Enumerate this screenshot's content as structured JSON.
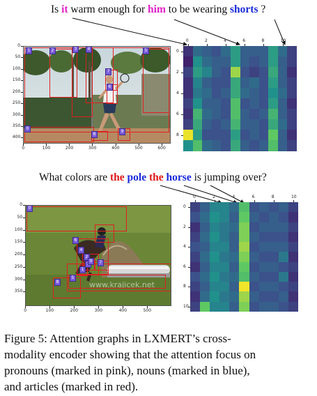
{
  "panels": [
    {
      "question": [
        {
          "text": "Is ",
          "role": "plain"
        },
        {
          "text": "it",
          "role": "pronoun"
        },
        {
          "text": " warm enough for ",
          "role": "plain"
        },
        {
          "text": "him",
          "role": "pronoun"
        },
        {
          "text": " to be wearing ",
          "role": "plain"
        },
        {
          "text": "shorts",
          "role": "noun"
        },
        {
          "text": " ?",
          "role": "plain"
        }
      ],
      "image_axis": {
        "x_ticks": [
          "0",
          "100",
          "200",
          "300",
          "400",
          "500",
          "600"
        ],
        "y_ticks": [
          "0",
          "50",
          "100",
          "150",
          "200",
          "250",
          "300",
          "350",
          "400"
        ]
      },
      "object_ids": [
        "0",
        "1",
        "2",
        "3",
        "4",
        "5",
        "6",
        "7",
        "8",
        "9"
      ],
      "heatmap": {
        "x_ticks": [
          "0",
          "2",
          "4",
          "6",
          "8",
          "10"
        ],
        "y_ticks": [
          "0",
          "2",
          "4",
          "6",
          "8"
        ],
        "rows": 10,
        "cols": 12,
        "values": [
          [
            0.15,
            0.35,
            0.3,
            0.25,
            0.35,
            0.55,
            0.3,
            0.3,
            0.3,
            0.55,
            0.35,
            0.2
          ],
          [
            0.1,
            0.5,
            0.35,
            0.3,
            0.3,
            0.55,
            0.3,
            0.25,
            0.3,
            0.55,
            0.3,
            0.2
          ],
          [
            0.2,
            0.55,
            0.45,
            0.3,
            0.25,
            0.85,
            0.25,
            0.2,
            0.25,
            0.6,
            0.3,
            0.15
          ],
          [
            0.15,
            0.45,
            0.3,
            0.25,
            0.25,
            0.6,
            0.3,
            0.35,
            0.25,
            0.55,
            0.3,
            0.2
          ],
          [
            0.15,
            0.4,
            0.35,
            0.25,
            0.3,
            0.6,
            0.35,
            0.3,
            0.25,
            0.5,
            0.35,
            0.2
          ],
          [
            0.2,
            0.5,
            0.3,
            0.3,
            0.25,
            0.7,
            0.25,
            0.3,
            0.25,
            0.55,
            0.3,
            0.15
          ],
          [
            0.15,
            0.65,
            0.35,
            0.3,
            0.25,
            0.7,
            0.3,
            0.25,
            0.3,
            0.65,
            0.3,
            0.2
          ],
          [
            0.2,
            0.6,
            0.3,
            0.25,
            0.3,
            0.65,
            0.3,
            0.3,
            0.25,
            0.6,
            0.35,
            0.2
          ],
          [
            0.97,
            0.55,
            0.25,
            0.25,
            0.25,
            0.55,
            0.25,
            0.3,
            0.25,
            0.75,
            0.3,
            0.15
          ],
          [
            0.5,
            0.7,
            0.35,
            0.3,
            0.25,
            0.6,
            0.3,
            0.25,
            0.3,
            0.7,
            0.3,
            0.2
          ]
        ]
      }
    },
    {
      "question": [
        {
          "text": "What colors are ",
          "role": "plain"
        },
        {
          "text": "the",
          "role": "article"
        },
        {
          "text": " ",
          "role": "plain"
        },
        {
          "text": "pole",
          "role": "noun"
        },
        {
          "text": " ",
          "role": "plain"
        },
        {
          "text": "the",
          "role": "article"
        },
        {
          "text": " ",
          "role": "plain"
        },
        {
          "text": "horse",
          "role": "noun"
        },
        {
          "text": " is jumping over?",
          "role": "plain"
        }
      ],
      "image_axis": {
        "x_ticks": [
          "0",
          "100",
          "200",
          "300",
          "400",
          "500"
        ],
        "y_ticks": [
          "0",
          "50",
          "100",
          "150",
          "200",
          "250",
          "300",
          "350"
        ]
      },
      "object_ids": [
        "0",
        "1",
        "2",
        "3",
        "4",
        "5",
        "6",
        "7",
        "8",
        "9"
      ],
      "watermark": "www.krajicek.net",
      "heatmap": {
        "x_ticks": [
          "0",
          "2",
          "4",
          "6",
          "8",
          "10"
        ],
        "y_ticks": [
          "0",
          "2",
          "4",
          "6",
          "8",
          "10"
        ],
        "rows": 11,
        "cols": 11,
        "values": [
          [
            0.2,
            0.3,
            0.45,
            0.45,
            0.35,
            0.7,
            0.25,
            0.3,
            0.25,
            0.3,
            0.2
          ],
          [
            0.25,
            0.35,
            0.5,
            0.45,
            0.3,
            0.75,
            0.3,
            0.25,
            0.3,
            0.25,
            0.15
          ],
          [
            0.15,
            0.3,
            0.45,
            0.4,
            0.35,
            0.8,
            0.25,
            0.3,
            0.3,
            0.3,
            0.2
          ],
          [
            0.2,
            0.35,
            0.5,
            0.4,
            0.3,
            0.8,
            0.3,
            0.25,
            0.25,
            0.25,
            0.15
          ],
          [
            0.25,
            0.3,
            0.45,
            0.45,
            0.3,
            0.85,
            0.25,
            0.3,
            0.3,
            0.3,
            0.2
          ],
          [
            0.2,
            0.35,
            0.5,
            0.4,
            0.35,
            0.8,
            0.3,
            0.25,
            0.25,
            0.4,
            0.15
          ],
          [
            0.15,
            0.3,
            0.45,
            0.45,
            0.3,
            0.75,
            0.25,
            0.3,
            0.3,
            0.25,
            0.2
          ],
          [
            0.25,
            0.35,
            0.5,
            0.4,
            0.35,
            0.7,
            0.3,
            0.25,
            0.25,
            0.4,
            0.15
          ],
          [
            0.2,
            0.3,
            0.45,
            0.45,
            0.3,
            0.98,
            0.25,
            0.3,
            0.3,
            0.25,
            0.2
          ],
          [
            0.15,
            0.35,
            0.5,
            0.4,
            0.35,
            0.85,
            0.3,
            0.25,
            0.25,
            0.3,
            0.15
          ],
          [
            0.2,
            0.75,
            0.45,
            0.45,
            0.3,
            0.8,
            0.25,
            0.3,
            0.3,
            0.25,
            0.2
          ]
        ]
      }
    }
  ],
  "colors": {
    "pronoun": "#e020c8",
    "noun": "#1a2ad8",
    "article": "#e01818",
    "plain": "#111111"
  },
  "caption": {
    "lines": [
      "Figure 5:  Attention graphs in LXMERT’s cross-",
      "modality encoder showing that the attention focus on",
      "pronouns (marked in pink), nouns (marked in blue),",
      "and articles (marked in red)."
    ]
  }
}
